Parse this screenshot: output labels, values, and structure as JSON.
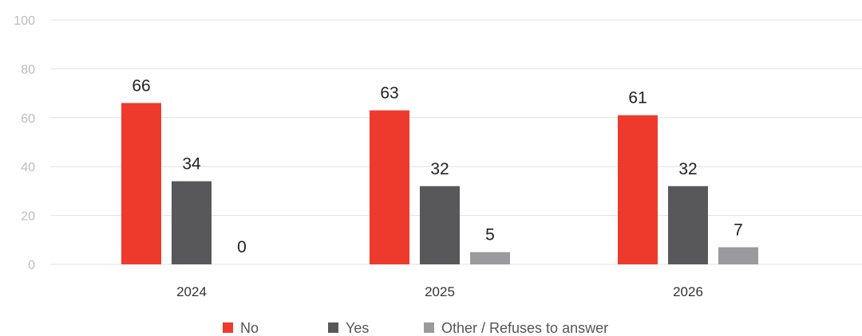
{
  "chart_data": {
    "type": "bar",
    "title": "",
    "xlabel": "",
    "ylabel": "",
    "categories": [
      "2024",
      "2025",
      "2026"
    ],
    "series": [
      {
        "name": "No",
        "values": [
          66,
          63,
          61
        ],
        "color": "#ee3a2d"
      },
      {
        "name": "Yes",
        "values": [
          34,
          32,
          32
        ],
        "color": "#58585a"
      },
      {
        "name": "Other / Refuses to answer",
        "values": [
          0,
          5,
          7
        ],
        "color": "#9a9a9c"
      }
    ],
    "ylim": [
      0,
      100
    ],
    "yticks": [
      0,
      20,
      40,
      60,
      80,
      100
    ],
    "grid": true,
    "legend_position": "bottom-center",
    "data_labels": true
  }
}
